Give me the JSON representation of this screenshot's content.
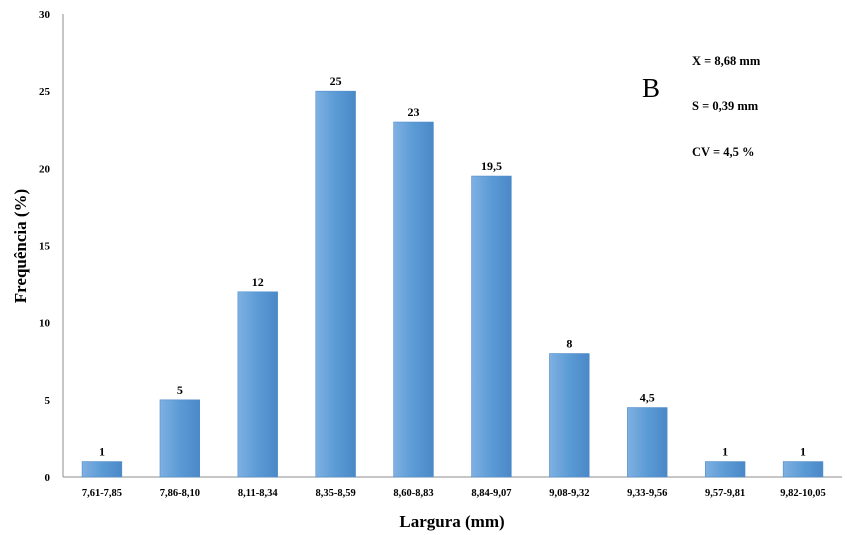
{
  "chart_data": {
    "type": "bar",
    "categories": [
      "7,61-7,85",
      "7,86-8,10",
      "8,11-8,34",
      "8,35-8,59",
      "8,60-8,83",
      "8,84-9,07",
      "9,08-9,32",
      "9,33-9,56",
      "9,57-9,81",
      "9,82-10,05"
    ],
    "values": [
      1,
      5,
      12,
      25,
      23,
      19.5,
      8,
      4.5,
      1,
      1
    ],
    "data_labels": [
      "1",
      "5",
      "12",
      "25",
      "23",
      "19,5",
      "8",
      "4,5",
      "1",
      "1"
    ],
    "xlabel": "Largura (mm)",
    "ylabel": "Frequência (%)",
    "ylim": [
      0,
      30
    ],
    "yticks": [
      "0",
      "5",
      "10",
      "15",
      "20",
      "25",
      "30"
    ],
    "grid": false,
    "panel_label": "B",
    "annotations": [
      "X = 8,68 mm",
      "S = 0,39 mm",
      "CV = 4,5 %"
    ],
    "bar_color": "#5B9BD5"
  }
}
